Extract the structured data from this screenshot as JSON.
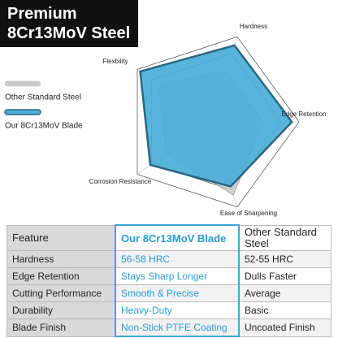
{
  "title_lines": [
    "Premium",
    "8Cr13MoV Steel"
  ],
  "chart_data": {
    "type": "radar",
    "categories": [
      "Hardness",
      "Edge Retention",
      "Ease of Sharpening",
      "Corrosion Resistance",
      "Flexbility"
    ],
    "rlim": [
      0,
      5
    ],
    "rticks": [
      1,
      2,
      3,
      4,
      5
    ],
    "series": [
      {
        "name": "Other Standard Steel",
        "color": "#c9c9c9",
        "values": [
          3,
          3,
          4.3,
          3,
          3.5
        ]
      },
      {
        "name": "Our 8Cr13MoV Blade",
        "color": "#4aaed8",
        "values": [
          4.5,
          4.6,
          3.8,
          4.1,
          4.8
        ]
      }
    ]
  },
  "table": {
    "header": [
      "Feature",
      "Our 8Cr13MoV Blade",
      "Other Standard Steel"
    ],
    "rows": [
      [
        "Hardness",
        "56-58 HRC",
        "52-55 HRC"
      ],
      [
        "Edge Retention",
        "Stays Sharp Longer",
        "Dulls Faster"
      ],
      [
        "Cutting Performance",
        "Smooth & Precise",
        "Average"
      ],
      [
        "Durability",
        "Heavy-Duty",
        "Basic"
      ],
      [
        "Blade Finish",
        "Non-Stick PTFE Coating",
        "Uncoated Finish"
      ]
    ]
  }
}
